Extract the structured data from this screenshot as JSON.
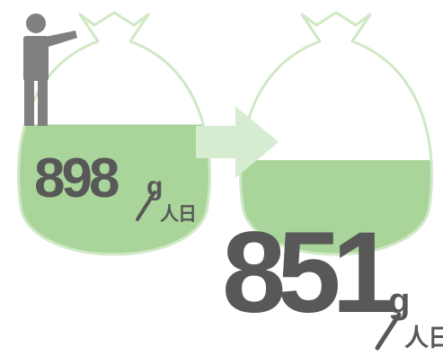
{
  "colors": {
    "fill": "#a9d59a",
    "outline": "#cfe8c5",
    "arrow": "#d5ecd0",
    "person": "#808080",
    "text": "#585858"
  },
  "before": {
    "value": "898",
    "g": "g",
    "unit": "人日",
    "fill_level": 0.56
  },
  "after": {
    "value": "851",
    "g": "g",
    "unit": "人日",
    "fill_level": 0.42
  }
}
